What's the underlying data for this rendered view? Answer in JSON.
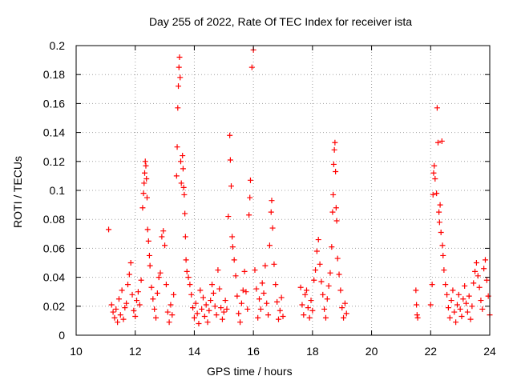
{
  "chart_data": {
    "type": "scatter",
    "title": "Day 255 of 2022, Rate Of TEC Index for receiver ista",
    "xlabel": "GPS time / hours",
    "ylabel": "ROTI / TECUs",
    "xlim": [
      10,
      24
    ],
    "ylim": [
      0,
      0.2
    ],
    "x_ticks": [
      "10",
      "12",
      "14",
      "16",
      "18",
      "20",
      "22",
      "24"
    ],
    "y_ticks": [
      "0",
      "0.02",
      "0.04",
      "0.06",
      "0.08",
      "0.1",
      "0.12",
      "0.14",
      "0.16",
      "0.18",
      "0.2"
    ],
    "grid": true,
    "marker": "+",
    "color": "#ff0000",
    "series": [
      {
        "points": [
          [
            11.1,
            0.073
          ],
          [
            11.2,
            0.021
          ],
          [
            11.25,
            0.016
          ],
          [
            11.3,
            0.012
          ],
          [
            11.35,
            0.018
          ],
          [
            11.4,
            0.009
          ],
          [
            11.45,
            0.025
          ],
          [
            11.5,
            0.014
          ],
          [
            11.55,
            0.031
          ],
          [
            11.6,
            0.011
          ],
          [
            11.65,
            0.019
          ],
          [
            11.7,
            0.022
          ],
          [
            11.75,
            0.035
          ],
          [
            11.8,
            0.042
          ],
          [
            11.85,
            0.05
          ],
          [
            11.9,
            0.028
          ],
          [
            11.95,
            0.017
          ],
          [
            12.0,
            0.013
          ],
          [
            12.05,
            0.024
          ],
          [
            12.1,
            0.03
          ],
          [
            12.15,
            0.021
          ],
          [
            12.2,
            0.038
          ],
          [
            12.25,
            0.088
          ],
          [
            12.28,
            0.098
          ],
          [
            12.3,
            0.105
          ],
          [
            12.32,
            0.112
          ],
          [
            12.34,
            0.12
          ],
          [
            12.36,
            0.117
          ],
          [
            12.38,
            0.108
          ],
          [
            12.4,
            0.095
          ],
          [
            12.42,
            0.073
          ],
          [
            12.45,
            0.065
          ],
          [
            12.48,
            0.055
          ],
          [
            12.5,
            0.048
          ],
          [
            12.55,
            0.033
          ],
          [
            12.6,
            0.025
          ],
          [
            12.65,
            0.018
          ],
          [
            12.7,
            0.012
          ],
          [
            12.75,
            0.029
          ],
          [
            12.8,
            0.04
          ],
          [
            12.85,
            0.043
          ],
          [
            12.9,
            0.068
          ],
          [
            12.95,
            0.072
          ],
          [
            13.0,
            0.062
          ],
          [
            13.05,
            0.035
          ],
          [
            13.1,
            0.016
          ],
          [
            13.15,
            0.009
          ],
          [
            13.2,
            0.021
          ],
          [
            13.25,
            0.014
          ],
          [
            13.3,
            0.028
          ],
          [
            13.4,
            0.11
          ],
          [
            13.42,
            0.13
          ],
          [
            13.44,
            0.157
          ],
          [
            13.46,
            0.172
          ],
          [
            13.48,
            0.185
          ],
          [
            13.5,
            0.192
          ],
          [
            13.52,
            0.178
          ],
          [
            13.54,
            0.12
          ],
          [
            13.56,
            0.105
          ],
          [
            13.6,
            0.124
          ],
          [
            13.62,
            0.115
          ],
          [
            13.64,
            0.102
          ],
          [
            13.66,
            0.097
          ],
          [
            13.68,
            0.084
          ],
          [
            13.7,
            0.068
          ],
          [
            13.72,
            0.052
          ],
          [
            13.75,
            0.044
          ],
          [
            13.8,
            0.04
          ],
          [
            13.85,
            0.035
          ],
          [
            13.9,
            0.028
          ],
          [
            13.95,
            0.019
          ],
          [
            14.0,
            0.012
          ],
          [
            14.05,
            0.022
          ],
          [
            14.1,
            0.015
          ],
          [
            14.15,
            0.008
          ],
          [
            14.2,
            0.031
          ],
          [
            14.25,
            0.018
          ],
          [
            14.3,
            0.026
          ],
          [
            14.35,
            0.013
          ],
          [
            14.4,
            0.021
          ],
          [
            14.45,
            0.009
          ],
          [
            14.5,
            0.017
          ],
          [
            14.55,
            0.024
          ],
          [
            14.6,
            0.035
          ],
          [
            14.65,
            0.029
          ],
          [
            14.7,
            0.02
          ],
          [
            14.75,
            0.014
          ],
          [
            14.8,
            0.045
          ],
          [
            14.85,
            0.032
          ],
          [
            14.9,
            0.019
          ],
          [
            14.95,
            0.011
          ],
          [
            15.0,
            0.016
          ],
          [
            15.05,
            0.024
          ],
          [
            15.1,
            0.018
          ],
          [
            15.15,
            0.082
          ],
          [
            15.2,
            0.138
          ],
          [
            15.22,
            0.121
          ],
          [
            15.25,
            0.103
          ],
          [
            15.28,
            0.068
          ],
          [
            15.3,
            0.061
          ],
          [
            15.35,
            0.052
          ],
          [
            15.4,
            0.041
          ],
          [
            15.45,
            0.027
          ],
          [
            15.5,
            0.015
          ],
          [
            15.55,
            0.009
          ],
          [
            15.6,
            0.022
          ],
          [
            15.65,
            0.031
          ],
          [
            15.7,
            0.044
          ],
          [
            15.75,
            0.03
          ],
          [
            15.8,
            0.018
          ],
          [
            15.85,
            0.083
          ],
          [
            15.88,
            0.095
          ],
          [
            15.9,
            0.107
          ],
          [
            15.95,
            0.185
          ],
          [
            16.0,
            0.197
          ],
          [
            16.05,
            0.045
          ],
          [
            16.1,
            0.032
          ],
          [
            16.15,
            0.012
          ],
          [
            16.2,
            0.025
          ],
          [
            16.25,
            0.018
          ],
          [
            16.3,
            0.036
          ],
          [
            16.35,
            0.029
          ],
          [
            16.4,
            0.048
          ],
          [
            16.45,
            0.022
          ],
          [
            16.5,
            0.014
          ],
          [
            16.55,
            0.062
          ],
          [
            16.6,
            0.085
          ],
          [
            16.62,
            0.093
          ],
          [
            16.65,
            0.074
          ],
          [
            16.7,
            0.049
          ],
          [
            16.75,
            0.035
          ],
          [
            16.8,
            0.023
          ],
          [
            16.85,
            0.011
          ],
          [
            16.9,
            0.017
          ],
          [
            16.95,
            0.026
          ],
          [
            17.0,
            0.013
          ],
          [
            17.6,
            0.033
          ],
          [
            17.65,
            0.021
          ],
          [
            17.7,
            0.014
          ],
          [
            17.75,
            0.028
          ],
          [
            17.8,
            0.031
          ],
          [
            17.85,
            0.019
          ],
          [
            17.9,
            0.012
          ],
          [
            17.95,
            0.024
          ],
          [
            18.0,
            0.017
          ],
          [
            18.05,
            0.038
          ],
          [
            18.1,
            0.045
          ],
          [
            18.15,
            0.058
          ],
          [
            18.2,
            0.066
          ],
          [
            18.25,
            0.049
          ],
          [
            18.3,
            0.037
          ],
          [
            18.35,
            0.028
          ],
          [
            18.4,
            0.018
          ],
          [
            18.45,
            0.012
          ],
          [
            18.5,
            0.025
          ],
          [
            18.55,
            0.034
          ],
          [
            18.6,
            0.043
          ],
          [
            18.65,
            0.061
          ],
          [
            18.68,
            0.085
          ],
          [
            18.7,
            0.097
          ],
          [
            18.72,
            0.118
          ],
          [
            18.74,
            0.128
          ],
          [
            18.76,
            0.133
          ],
          [
            18.78,
            0.113
          ],
          [
            18.8,
            0.088
          ],
          [
            18.82,
            0.079
          ],
          [
            18.85,
            0.053
          ],
          [
            18.9,
            0.042
          ],
          [
            18.95,
            0.031
          ],
          [
            19.0,
            0.019
          ],
          [
            19.05,
            0.012
          ],
          [
            19.1,
            0.022
          ],
          [
            19.15,
            0.015
          ],
          [
            21.5,
            0.031
          ],
          [
            21.52,
            0.021
          ],
          [
            21.54,
            0.014
          ],
          [
            21.56,
            0.012
          ],
          [
            22.0,
            0.021
          ],
          [
            22.05,
            0.035
          ],
          [
            22.08,
            0.097
          ],
          [
            22.1,
            0.112
          ],
          [
            22.12,
            0.117
          ],
          [
            22.15,
            0.108
          ],
          [
            22.2,
            0.098
          ],
          [
            22.22,
            0.157
          ],
          [
            22.25,
            0.133
          ],
          [
            22.28,
            0.085
          ],
          [
            22.3,
            0.078
          ],
          [
            22.32,
            0.09
          ],
          [
            22.35,
            0.071
          ],
          [
            22.38,
            0.134
          ],
          [
            22.4,
            0.062
          ],
          [
            22.42,
            0.055
          ],
          [
            22.45,
            0.045
          ],
          [
            22.5,
            0.035
          ],
          [
            22.55,
            0.028
          ],
          [
            22.6,
            0.019
          ],
          [
            22.65,
            0.012
          ],
          [
            22.7,
            0.024
          ],
          [
            22.75,
            0.031
          ],
          [
            22.8,
            0.016
          ],
          [
            22.85,
            0.009
          ],
          [
            22.9,
            0.021
          ],
          [
            22.95,
            0.028
          ],
          [
            23.0,
            0.018
          ],
          [
            23.05,
            0.013
          ],
          [
            23.1,
            0.025
          ],
          [
            23.15,
            0.034
          ],
          [
            23.2,
            0.022
          ],
          [
            23.25,
            0.016
          ],
          [
            23.3,
            0.027
          ],
          [
            23.35,
            0.011
          ],
          [
            23.4,
            0.02
          ],
          [
            23.45,
            0.036
          ],
          [
            23.5,
            0.044
          ],
          [
            23.55,
            0.05
          ],
          [
            23.6,
            0.041
          ],
          [
            23.65,
            0.033
          ],
          [
            23.7,
            0.024
          ],
          [
            23.75,
            0.018
          ],
          [
            23.8,
            0.046
          ],
          [
            23.85,
            0.052
          ],
          [
            23.9,
            0.038
          ],
          [
            23.95,
            0.027
          ],
          [
            24.0,
            0.014
          ]
        ]
      }
    ]
  }
}
